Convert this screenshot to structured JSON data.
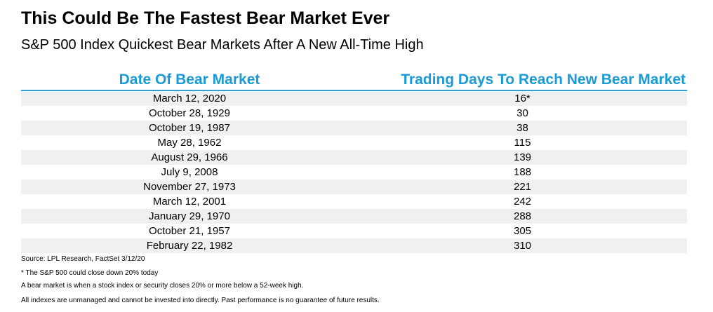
{
  "title": "This Could Be The Fastest Bear Market Ever",
  "subtitle": "S&P 500 Index Quickest Bear Markets After A New All-Time High",
  "table": {
    "headers": {
      "date": "Date Of Bear Market",
      "days": "Trading Days To Reach New Bear Market"
    },
    "rows": [
      {
        "date": "March 12, 2020",
        "days": "16*"
      },
      {
        "date": "October 28, 1929",
        "days": "30"
      },
      {
        "date": "October 19, 1987",
        "days": "38"
      },
      {
        "date": "May 28, 1962",
        "days": "115"
      },
      {
        "date": "August 29, 1966",
        "days": "139"
      },
      {
        "date": "July 9, 2008",
        "days": "188"
      },
      {
        "date": "November 27, 1973",
        "days": "221"
      },
      {
        "date": "March 12, 2001",
        "days": "242"
      },
      {
        "date": "January 29, 1970",
        "days": "288"
      },
      {
        "date": "October 21, 1957",
        "days": "305"
      },
      {
        "date": "February 22, 1982",
        "days": "310"
      }
    ]
  },
  "notes": {
    "source": "Source: LPL Research, FactSet 3/12/20",
    "footnote": "* The S&P 500 could close down 20% today",
    "definition": "A bear market is when a stock index or security closes 20% or more below a 52-week high.",
    "disclaimer": "All indexes are unmanaged and cannot be invested into directly. Past performance is no guarantee of future results."
  },
  "colors": {
    "header_text": "#1A9BD7",
    "header_rule": "#2E9FD6",
    "stripe": "#F0F0F0"
  }
}
